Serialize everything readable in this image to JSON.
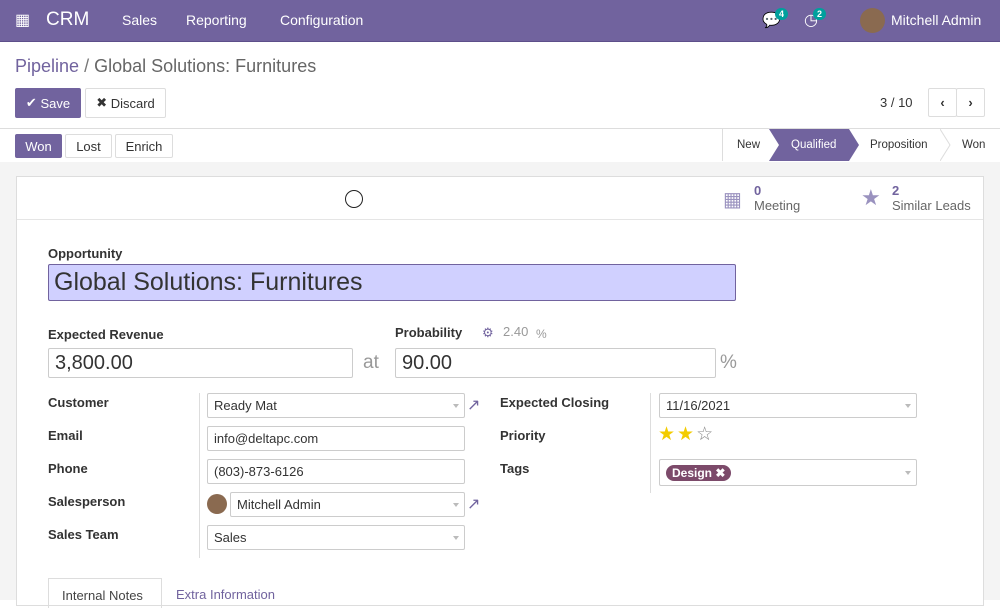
{
  "nav": {
    "app": "CRM",
    "menus": [
      "Sales",
      "Reporting",
      "Configuration"
    ],
    "messages_count": "4",
    "activities_count": "2",
    "user": "Mitchell Admin"
  },
  "breadcrumb": {
    "parent": "Pipeline",
    "separator": "/",
    "current": "Global Solutions: Furnitures"
  },
  "toolbar": {
    "save": "Save",
    "discard": "Discard",
    "pager": "3 / 10"
  },
  "actions": {
    "won": "Won",
    "lost": "Lost",
    "enrich": "Enrich"
  },
  "stages": {
    "items": [
      "New",
      "Qualified",
      "Proposition",
      "Won"
    ],
    "active": "Qualified"
  },
  "smart_buttons": [
    {
      "count": "0",
      "label": "Meeting",
      "icon": "calendar-icon"
    },
    {
      "count": "2",
      "label": "Similar Leads",
      "icon": "star-icon"
    }
  ],
  "form": {
    "opportunity_label": "Opportunity",
    "opportunity": "Global Solutions: Furnitures",
    "revenue_label": "Expected Revenue",
    "revenue": "3,800.00",
    "at": "at",
    "probability_label": "Probability",
    "auto_probability": "2.40",
    "percent": "%",
    "probability": "90.00",
    "customer_label": "Customer",
    "customer": "Ready Mat",
    "email_label": "Email",
    "email": "info@deltapc.com",
    "phone_label": "Phone",
    "phone": "(803)-873-6126",
    "salesperson_label": "Salesperson",
    "salesperson": "Mitchell Admin",
    "team_label": "Sales Team",
    "team": "Sales",
    "closing_label": "Expected Closing",
    "closing": "11/16/2021",
    "priority_label": "Priority",
    "priority": 2,
    "priority_max": 3,
    "tags_label": "Tags",
    "tags": [
      "Design"
    ],
    "tag_color": "#7c4a6a"
  },
  "tabs": [
    "Internal Notes",
    "Extra Information"
  ],
  "colors": {
    "brand": "#71639e",
    "highlight": "#d0d0ff",
    "star": "#f3cc00"
  }
}
